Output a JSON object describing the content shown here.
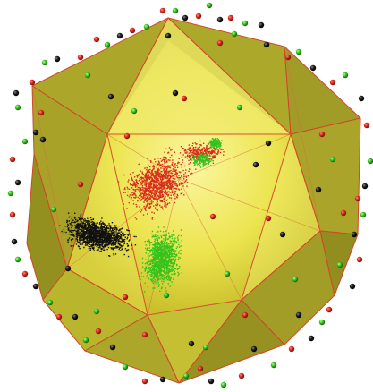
{
  "scene": {
    "subject": "icosahedron",
    "colors": {
      "background": "#ffffff",
      "shell_dark": "#8d8a1e",
      "shell_light": "#e8e24c",
      "inner_face": "#f3ee6e",
      "edge": "#d2472a",
      "marker_red": "#d92b1e",
      "marker_green": "#33c21e",
      "marker_black": "#111111"
    },
    "clusters": [
      {
        "color": "red",
        "count": 1400
      },
      {
        "color": "green",
        "count": 1500
      },
      {
        "color": "black",
        "count": 1400
      }
    ]
  }
}
